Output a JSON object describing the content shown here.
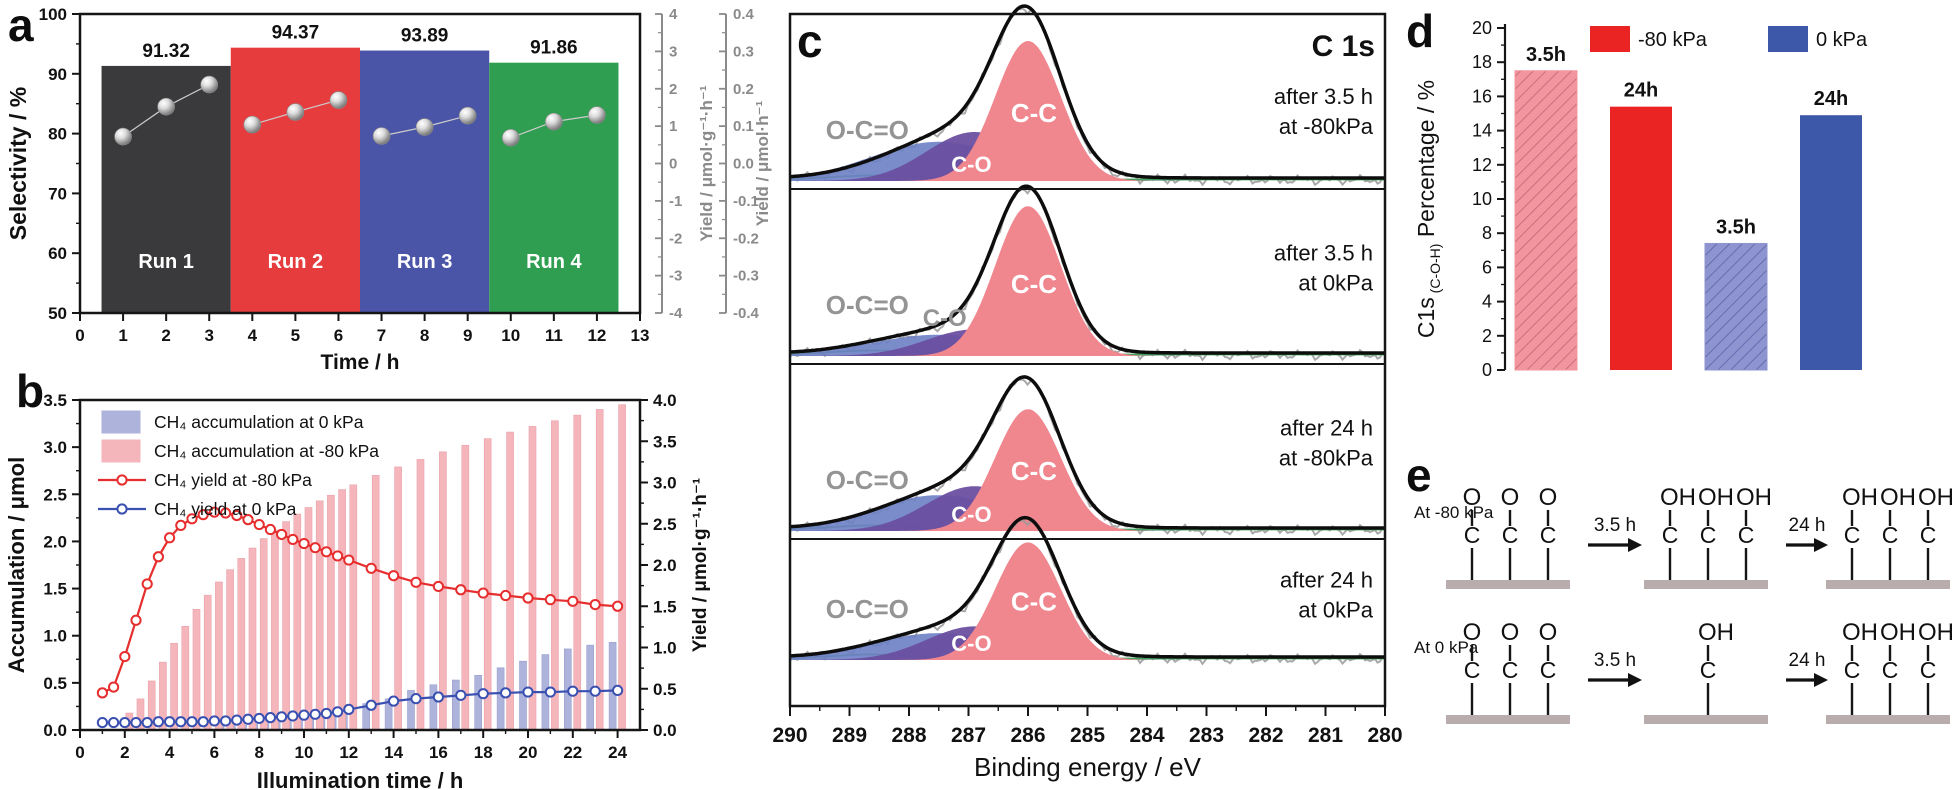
{
  "figure": {
    "panel_labels": {
      "a": "a",
      "b": "b",
      "c": "c",
      "d": "d",
      "e": "e"
    }
  },
  "chart_data": [
    {
      "id": "panel-a",
      "type": "bar",
      "xlabel": "Time / h",
      "ylabel": "Selectivity / %",
      "right_axes": [
        {
          "label": "Yield / μmol·g⁻¹·h⁻¹",
          "lim": [
            -4,
            4
          ],
          "tick_step": 1
        },
        {
          "label": "Yield / μmol·h⁻¹",
          "lim": [
            -0.4,
            0.4
          ],
          "tick_step": 0.1
        }
      ],
      "xlim": [
        0,
        13
      ],
      "ylim": [
        50,
        100
      ],
      "x_ticks": [
        0,
        1,
        2,
        3,
        4,
        5,
        6,
        7,
        8,
        9,
        10,
        11,
        12,
        13
      ],
      "y_ticks": [
        50,
        60,
        70,
        80,
        90,
        100
      ],
      "bars": [
        {
          "label": "Run 1",
          "value": 91.32,
          "x_start": 0.5,
          "x_end": 3.5,
          "color": "#3a3a3c",
          "points": [
            {
              "x": 1,
              "y": 79.5
            },
            {
              "x": 2,
              "y": 84.5
            },
            {
              "x": 3,
              "y": 88.2
            }
          ]
        },
        {
          "label": "Run 2",
          "value": 94.37,
          "x_start": 3.5,
          "x_end": 6.5,
          "color": "#e73c3e",
          "points": [
            {
              "x": 4,
              "y": 81.5
            },
            {
              "x": 5,
              "y": 83.6
            },
            {
              "x": 6,
              "y": 85.6
            }
          ]
        },
        {
          "label": "Run 3",
          "value": 93.89,
          "x_start": 6.5,
          "x_end": 9.5,
          "color": "#4b55a7",
          "points": [
            {
              "x": 7,
              "y": 79.6
            },
            {
              "x": 8,
              "y": 81.1
            },
            {
              "x": 9,
              "y": 83.0
            }
          ]
        },
        {
          "label": "Run 4",
          "value": 91.86,
          "x_start": 9.5,
          "x_end": 12.5,
          "color": "#2f9e50",
          "points": [
            {
              "x": 10,
              "y": 79.3
            },
            {
              "x": 11,
              "y": 82.0
            },
            {
              "x": 12,
              "y": 83.1
            }
          ]
        }
      ]
    },
    {
      "id": "panel-b",
      "type": "bar",
      "xlabel": "Illumination time / h",
      "ylabel": "Accumulation / μmol",
      "right_ylabel": "Yield / μmol·g⁻¹·h⁻¹",
      "xlim": [
        0,
        25
      ],
      "ylim": [
        0,
        3.5
      ],
      "right_ylim": [
        0,
        4
      ],
      "x_ticks": [
        0,
        2,
        4,
        6,
        8,
        10,
        12,
        14,
        16,
        18,
        20,
        22,
        24
      ],
      "y_ticks": [
        0,
        0.5,
        1,
        1.5,
        2,
        2.5,
        3,
        3.5
      ],
      "right_y_ticks": [
        0,
        0.5,
        1,
        1.5,
        2,
        2.5,
        3,
        3.5,
        4
      ],
      "legend": [
        {
          "label": "CH₄ accumulation at 0 kPa",
          "style": "fill",
          "color": "#aeb3dc"
        },
        {
          "label": "CH₄ accumulation at -80 kPa",
          "style": "fill",
          "color": "#f5b6bb"
        },
        {
          "label": "CH₄ yield at -80 kPa",
          "style": "line",
          "color": "#e62e2e"
        },
        {
          "label": "CH₄ yield at 0 kPa",
          "style": "line",
          "color": "#3a50b0"
        }
      ],
      "series": [
        {
          "name": "CH₄ accumulation at -80 kPa",
          "style": "bar",
          "axis": "left",
          "color": "#f5b6bb",
          "edge": "#e9a1a9",
          "x": [
            2,
            2.5,
            3,
            3.5,
            4,
            4.5,
            5,
            5.5,
            6,
            6.5,
            7,
            7.5,
            8,
            8.5,
            9,
            9.5,
            10,
            10.5,
            11,
            11.5,
            12,
            13,
            14,
            15,
            16,
            17,
            18,
            19,
            20,
            21,
            22,
            23,
            24
          ],
          "y": [
            0.18,
            0.33,
            0.52,
            0.72,
            0.92,
            1.1,
            1.28,
            1.43,
            1.57,
            1.7,
            1.82,
            1.93,
            2.03,
            2.12,
            2.21,
            2.29,
            2.36,
            2.43,
            2.49,
            2.55,
            2.6,
            2.7,
            2.79,
            2.87,
            2.95,
            3.02,
            3.09,
            3.16,
            3.22,
            3.28,
            3.34,
            3.4,
            3.45
          ]
        },
        {
          "name": "CH₄ accumulation at 0 kPa",
          "style": "bar",
          "axis": "left",
          "color": "#aeb3dc",
          "edge": "#999fd0",
          "x": [
            6.5,
            7,
            7.5,
            8,
            8.5,
            9,
            9.5,
            10,
            10.5,
            11,
            11.5,
            12,
            13,
            14,
            15,
            16,
            17,
            18,
            19,
            20,
            21,
            22,
            23,
            24
          ],
          "y": [
            0.04,
            0.05,
            0.05,
            0.06,
            0.07,
            0.08,
            0.09,
            0.1,
            0.12,
            0.14,
            0.17,
            0.2,
            0.28,
            0.33,
            0.42,
            0.48,
            0.53,
            0.58,
            0.66,
            0.73,
            0.8,
            0.86,
            0.9,
            0.93
          ]
        },
        {
          "name": "CH₄ yield at -80 kPa",
          "style": "line",
          "axis": "right",
          "color": "#e62e2e",
          "x": [
            1,
            1.5,
            2,
            2.5,
            3,
            3.5,
            4,
            4.5,
            5,
            5.5,
            6,
            6.5,
            7,
            7.5,
            8,
            8.5,
            9,
            9.5,
            10,
            10.5,
            11,
            11.5,
            12,
            13,
            14,
            15,
            16,
            17,
            18,
            19,
            20,
            21,
            22,
            23,
            24
          ],
          "y": [
            0.45,
            0.52,
            0.89,
            1.33,
            1.77,
            2.1,
            2.33,
            2.48,
            2.56,
            2.61,
            2.64,
            2.63,
            2.6,
            2.55,
            2.49,
            2.43,
            2.37,
            2.31,
            2.26,
            2.21,
            2.16,
            2.11,
            2.06,
            1.96,
            1.87,
            1.79,
            1.74,
            1.7,
            1.66,
            1.63,
            1.6,
            1.58,
            1.56,
            1.52,
            1.5
          ]
        },
        {
          "name": "CH₄ yield at 0 kPa",
          "style": "line",
          "axis": "right",
          "color": "#3a50b0",
          "x": [
            1,
            1.5,
            2,
            2.5,
            3,
            3.5,
            4,
            4.5,
            5,
            5.5,
            6,
            6.5,
            7,
            7.5,
            8,
            8.5,
            9,
            9.5,
            10,
            10.5,
            11,
            11.5,
            12,
            13,
            14,
            15,
            16,
            17,
            18,
            19,
            20,
            21,
            22,
            23,
            24
          ],
          "y": [
            0.09,
            0.09,
            0.09,
            0.09,
            0.09,
            0.1,
            0.1,
            0.1,
            0.1,
            0.1,
            0.11,
            0.11,
            0.12,
            0.13,
            0.14,
            0.15,
            0.16,
            0.17,
            0.18,
            0.19,
            0.2,
            0.22,
            0.25,
            0.3,
            0.35,
            0.38,
            0.4,
            0.42,
            0.44,
            0.45,
            0.46,
            0.46,
            0.47,
            0.47,
            0.48
          ]
        }
      ]
    },
    {
      "id": "panel-c",
      "type": "area",
      "title": "C 1s",
      "xlabel": "Binding energy / eV",
      "xlim": [
        290,
        280
      ],
      "x_ticks": [
        290,
        289,
        288,
        287,
        286,
        285,
        284,
        283,
        282,
        281,
        280
      ],
      "peak_labels": {
        "cc": "C-C",
        "co": "C-O",
        "oco": "O-C=O"
      },
      "colors": {
        "cc_fill": "#f0868e",
        "co_fill": "#6a4fa0",
        "co_blue": "#6d7fc4",
        "oco_line": "#3fa45c",
        "envelope": "#0d0d0d",
        "raw": "#9a9a9a",
        "label_gray": "#949494"
      },
      "peaks_center_eV": {
        "cc": 286.0,
        "co": 286.9,
        "co_blue": 287.5,
        "oco": 288.6
      },
      "spectra": [
        {
          "annotation_line1": "after 3.5 h",
          "annotation_line2": "at -80kPa",
          "cc_h": 1.0,
          "co_h": 0.35,
          "co_label_style": "inside"
        },
        {
          "annotation_line1": "after 3.5 h",
          "annotation_line2": "at 0kPa",
          "cc_h": 1.07,
          "co_h": 0.19,
          "co_label_style": "outside"
        },
        {
          "annotation_line1": "after 24 h",
          "annotation_line2": "at -80kPa",
          "cc_h": 0.87,
          "co_h": 0.32,
          "co_label_style": "inside"
        },
        {
          "annotation_line1": "after 24 h",
          "annotation_line2": "at 0kPa",
          "cc_h": 0.84,
          "co_h": 0.24,
          "co_label_style": "inside"
        }
      ]
    },
    {
      "id": "panel-d",
      "type": "bar",
      "ylabel_parts": {
        "prefix": "C1s",
        "subscript": "(C-O-H)",
        "suffix": " Percentage / %"
      },
      "ylim": [
        0,
        20
      ],
      "y_ticks": [
        0,
        2,
        4,
        6,
        8,
        10,
        12,
        14,
        16,
        18,
        20
      ],
      "legend": [
        {
          "label": "-80 kPa",
          "color": "#ea2422"
        },
        {
          "label": "0 kPa",
          "color": "#3d57a9"
        }
      ],
      "bars": [
        {
          "label": "3.5h",
          "value": 17.5,
          "color": "#f2959e",
          "hatch": true,
          "hatch_color": "#c06670"
        },
        {
          "label": "24h",
          "value": 15.4,
          "color": "#ea2422",
          "hatch": false,
          "hatch_color": ""
        },
        {
          "label": "3.5h",
          "value": 7.4,
          "color": "#8e94cf",
          "hatch": true,
          "hatch_color": "#5a62a8"
        },
        {
          "label": "24h",
          "value": 14.9,
          "color": "#3d57a9",
          "hatch": false,
          "hatch_color": ""
        }
      ]
    },
    {
      "id": "panel-e",
      "type": "diagram",
      "substrate_color": "#b9acac",
      "rows": [
        {
          "condition": "At -80 kPa",
          "stages": [
            [
              "O",
              "O",
              "O"
            ],
            [
              "OH",
              "OH",
              "OH"
            ],
            [
              "OH",
              "OH",
              "OH"
            ]
          ],
          "arrows": [
            "3.5 h",
            "24 h"
          ]
        },
        {
          "condition": "At 0 kPa",
          "stages": [
            [
              "O",
              "O",
              "O"
            ],
            [
              "OH"
            ],
            [
              "OH",
              "OH",
              "OH"
            ]
          ],
          "arrows": [
            "3.5 h",
            "24 h"
          ]
        }
      ]
    }
  ]
}
